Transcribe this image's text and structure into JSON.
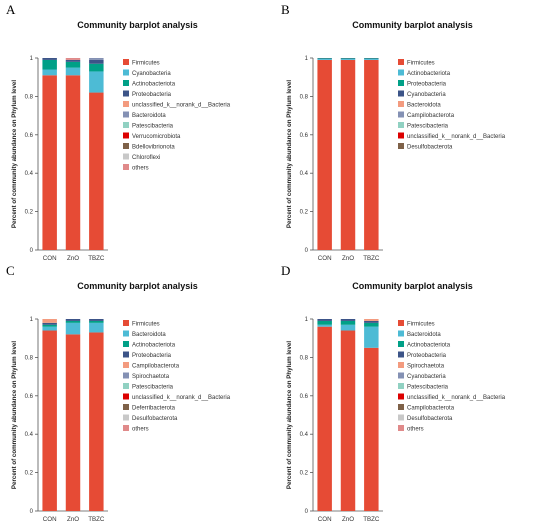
{
  "panels": [
    {
      "letter": "A",
      "title": "Community barplot analysis"
    },
    {
      "letter": "B",
      "title": "Community barplot analysis"
    },
    {
      "letter": "C",
      "title": "Community barplot analysis"
    },
    {
      "letter": "D",
      "title": "Community barplot analysis"
    }
  ],
  "colors": {
    "Firmicutes": "#e64b35",
    "Cyanobacteria": "#4dbbd5",
    "Actinobacteriota": "#00a087",
    "Proteobacteria": "#3c5488",
    "unclassified_k__norank_d__Bacteria": "#f39b7f",
    "Bacteroidota": "#8491b4",
    "Patescibacteria": "#91d1c2",
    "Verrucomicrobiota": "#dc0000",
    "Bdellovibrionota": "#7e6148",
    "Chloroflexi": "#c8c8c8",
    "others": "#e08a8a"
  },
  "chart_data": [
    {
      "type": "bar",
      "stacked": true,
      "title": "Community barplot analysis",
      "ylabel": "Percent of community abundance on Phylum level",
      "xlabel": "",
      "ylim": [
        0,
        1
      ],
      "yticks": [
        "0",
        "0.2",
        "0.4",
        "0.6",
        "0.8",
        "1"
      ],
      "categories": [
        "CON",
        "ZnO",
        "TBZC"
      ],
      "legend": "right",
      "series": [
        {
          "name": "Firmicutes",
          "color": "#e64b35",
          "values": [
            0.91,
            0.91,
            0.82
          ]
        },
        {
          "name": "Cyanobacteria",
          "color": "#4dbbd5",
          "values": [
            0.03,
            0.04,
            0.11
          ]
        },
        {
          "name": "Actinobacteriota",
          "color": "#00a087",
          "values": [
            0.05,
            0.03,
            0.04
          ]
        },
        {
          "name": "Proteobacteria",
          "color": "#3c5488",
          "values": [
            0.01,
            0.01,
            0.02
          ]
        },
        {
          "name": "unclassified_k__norank_d__Bacteria",
          "color": "#f39b7f",
          "values": [
            0,
            0,
            0
          ]
        },
        {
          "name": "Bacteroidota",
          "color": "#8491b4",
          "values": [
            0,
            0,
            0.01
          ]
        },
        {
          "name": "Patescibacteria",
          "color": "#91d1c2",
          "values": [
            0,
            0,
            0
          ]
        },
        {
          "name": "Verrucomicrobiota",
          "color": "#dc0000",
          "values": [
            0,
            0,
            0
          ]
        },
        {
          "name": "Bdellovibrionota",
          "color": "#7e6148",
          "values": [
            0,
            0,
            0
          ]
        },
        {
          "name": "Chloroflexi",
          "color": "#c8c8c8",
          "values": [
            0,
            0,
            0
          ]
        },
        {
          "name": "others",
          "color": "#e08a8a",
          "values": [
            0,
            0.01,
            0
          ]
        }
      ]
    },
    {
      "type": "bar",
      "stacked": true,
      "title": "Community barplot analysis",
      "ylabel": "Percent of community abundance on Phylum level",
      "xlabel": "",
      "ylim": [
        0,
        1
      ],
      "yticks": [
        "0",
        "0.2",
        "0.4",
        "0.6",
        "0.8",
        "1"
      ],
      "categories": [
        "CON",
        "ZnO",
        "TBZC"
      ],
      "legend": "right",
      "series": [
        {
          "name": "Firmicutes",
          "color": "#e64b35",
          "values": [
            0.99,
            0.99,
            0.99
          ]
        },
        {
          "name": "Actinobacteriota",
          "color": "#4dbbd5",
          "values": [
            0.005,
            0.005,
            0.005
          ]
        },
        {
          "name": "Proteobacteria",
          "color": "#00a087",
          "values": [
            0.003,
            0.003,
            0.003
          ]
        },
        {
          "name": "Cyanobacteria",
          "color": "#3c5488",
          "values": [
            0.002,
            0.002,
            0.002
          ]
        },
        {
          "name": "Bacteroidota",
          "color": "#f39b7f",
          "values": [
            0,
            0,
            0
          ]
        },
        {
          "name": "Campilobacterota",
          "color": "#8491b4",
          "values": [
            0,
            0,
            0
          ]
        },
        {
          "name": "Patescibacteria",
          "color": "#91d1c2",
          "values": [
            0,
            0,
            0
          ]
        },
        {
          "name": "unclassified_k__norank_d__Bacteria",
          "color": "#dc0000",
          "values": [
            0,
            0,
            0
          ]
        },
        {
          "name": "Desulfobacterota",
          "color": "#7e6148",
          "values": [
            0,
            0,
            0
          ]
        }
      ]
    },
    {
      "type": "bar",
      "stacked": true,
      "title": "Community barplot analysis",
      "ylabel": "Percent of community abundance on Phylum level",
      "xlabel": "",
      "ylim": [
        0,
        1
      ],
      "yticks": [
        "0",
        "0.2",
        "0.4",
        "0.6",
        "0.8",
        "1"
      ],
      "categories": [
        "CON",
        "ZnO",
        "TBZC"
      ],
      "legend": "right",
      "series": [
        {
          "name": "Firmicutes",
          "color": "#e64b35",
          "values": [
            0.94,
            0.92,
            0.93
          ]
        },
        {
          "name": "Bacteroidota",
          "color": "#4dbbd5",
          "values": [
            0.02,
            0.06,
            0.05
          ]
        },
        {
          "name": "Actinobacteriota",
          "color": "#00a087",
          "values": [
            0.01,
            0.01,
            0.01
          ]
        },
        {
          "name": "Proteobacteria",
          "color": "#3c5488",
          "values": [
            0.01,
            0.01,
            0.01
          ]
        },
        {
          "name": "Campilobacterota",
          "color": "#f39b7f",
          "values": [
            0.02,
            0,
            0
          ]
        },
        {
          "name": "Spirochaetota",
          "color": "#8491b4",
          "values": [
            0,
            0,
            0
          ]
        },
        {
          "name": "Patescibacteria",
          "color": "#91d1c2",
          "values": [
            0,
            0,
            0
          ]
        },
        {
          "name": "unclassified_k__norank_d__Bacteria",
          "color": "#dc0000",
          "values": [
            0,
            0,
            0
          ]
        },
        {
          "name": "Deferribacterota",
          "color": "#7e6148",
          "values": [
            0,
            0,
            0
          ]
        },
        {
          "name": "Desulfobacterota",
          "color": "#c8c8c8",
          "values": [
            0,
            0,
            0
          ]
        },
        {
          "name": "others",
          "color": "#e08a8a",
          "values": [
            0,
            0,
            0
          ]
        }
      ]
    },
    {
      "type": "bar",
      "stacked": true,
      "title": "Community barplot analysis",
      "ylabel": "Percent of community abundance on Phylum level",
      "xlabel": "",
      "ylim": [
        0,
        1
      ],
      "yticks": [
        "0",
        "0.2",
        "0.4",
        "0.6",
        "0.8",
        "1"
      ],
      "categories": [
        "CON",
        "ZnO",
        "TBZC"
      ],
      "legend": "right",
      "series": [
        {
          "name": "Firmicutes",
          "color": "#e64b35",
          "values": [
            0.96,
            0.94,
            0.85
          ]
        },
        {
          "name": "Bacteroidota",
          "color": "#4dbbd5",
          "values": [
            0.01,
            0.03,
            0.11
          ]
        },
        {
          "name": "Actinobacteriota",
          "color": "#00a087",
          "values": [
            0.02,
            0.02,
            0.02
          ]
        },
        {
          "name": "Proteobacteria",
          "color": "#3c5488",
          "values": [
            0.01,
            0.01,
            0.01
          ]
        },
        {
          "name": "Spirochaetota",
          "color": "#f39b7f",
          "values": [
            0,
            0,
            0.01
          ]
        },
        {
          "name": "Cyanobacteria",
          "color": "#8491b4",
          "values": [
            0,
            0,
            0
          ]
        },
        {
          "name": "Patescibacteria",
          "color": "#91d1c2",
          "values": [
            0,
            0,
            0
          ]
        },
        {
          "name": "unclassified_k__norank_d__Bacteria",
          "color": "#dc0000",
          "values": [
            0,
            0,
            0
          ]
        },
        {
          "name": "Campilobacterota",
          "color": "#7e6148",
          "values": [
            0,
            0,
            0
          ]
        },
        {
          "name": "Desulfobacterota",
          "color": "#c8c8c8",
          "values": [
            0,
            0,
            0
          ]
        },
        {
          "name": "others",
          "color": "#e08a8a",
          "values": [
            0,
            0,
            0
          ]
        }
      ]
    }
  ]
}
